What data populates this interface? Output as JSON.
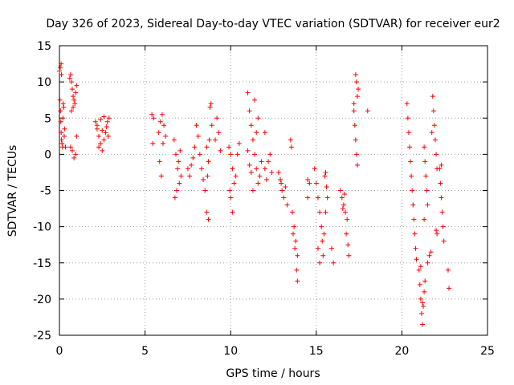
{
  "chart_data": {
    "type": "scatter",
    "title": "Day 326 of 2023, Sidereal Day-to-day VTEC variation (SDTVAR) for receiver eur2",
    "xlabel": "GPS time / hours",
    "ylabel": "SDTVAR / TECUs",
    "xlim": [
      0,
      25
    ],
    "ylim": [
      -25,
      15
    ],
    "xticks": [
      0,
      5,
      10,
      15,
      20,
      25
    ],
    "yticks": [
      -25,
      -20,
      -15,
      -10,
      -5,
      0,
      5,
      10,
      15
    ],
    "grid": true,
    "marker": "plus",
    "color": "#ff0000",
    "series": [
      {
        "name": "SDTVAR",
        "points": [
          [
            0.0,
            11.5
          ],
          [
            0.05,
            12.0
          ],
          [
            0.1,
            12.5
          ],
          [
            0.12,
            11.0
          ],
          [
            0.03,
            7.5
          ],
          [
            0.06,
            6.0
          ],
          [
            0.08,
            4.5
          ],
          [
            0.1,
            3.0
          ],
          [
            0.12,
            2.0
          ],
          [
            0.15,
            1.5
          ],
          [
            0.18,
            1.0
          ],
          [
            0.2,
            5.0
          ],
          [
            0.22,
            7.0
          ],
          [
            0.25,
            6.5
          ],
          [
            0.3,
            3.5
          ],
          [
            0.35,
            1.0
          ],
          [
            0.28,
            2.5
          ],
          [
            0.6,
            10.5
          ],
          [
            0.65,
            11.0
          ],
          [
            0.7,
            10.0
          ],
          [
            0.75,
            9.0
          ],
          [
            0.8,
            8.0
          ],
          [
            0.85,
            7.5
          ],
          [
            0.9,
            7.0
          ],
          [
            0.95,
            8.5
          ],
          [
            1.0,
            9.5
          ],
          [
            0.7,
            6.0
          ],
          [
            0.8,
            6.5
          ],
          [
            0.65,
            1.0
          ],
          [
            0.75,
            0.5
          ],
          [
            0.85,
            -0.5
          ],
          [
            0.95,
            0.0
          ],
          [
            1.0,
            2.5
          ],
          [
            2.1,
            4.5
          ],
          [
            2.2,
            3.5
          ],
          [
            2.3,
            2.5
          ],
          [
            2.4,
            1.5
          ],
          [
            2.5,
            0.5
          ],
          [
            2.6,
            2.0
          ],
          [
            2.7,
            3.0
          ],
          [
            2.8,
            4.5
          ],
          [
            2.9,
            5.0
          ],
          [
            2.2,
            4.0
          ],
          [
            2.4,
            4.8
          ],
          [
            2.6,
            5.2
          ],
          [
            2.75,
            3.8
          ],
          [
            2.85,
            2.5
          ],
          [
            2.5,
            3.3
          ],
          [
            2.3,
            1.0
          ],
          [
            5.4,
            5.5
          ],
          [
            5.5,
            5.0
          ],
          [
            5.45,
            1.5
          ],
          [
            5.8,
            3.0
          ],
          [
            5.9,
            4.5
          ],
          [
            6.0,
            5.5
          ],
          [
            6.1,
            4.0
          ],
          [
            6.2,
            2.5
          ],
          [
            5.85,
            -1.0
          ],
          [
            5.95,
            -3.0
          ],
          [
            6.05,
            1.5
          ],
          [
            6.7,
            2.0
          ],
          [
            6.8,
            0.0
          ],
          [
            6.9,
            -2.0
          ],
          [
            7.0,
            -4.0
          ],
          [
            7.1,
            -3.0
          ],
          [
            6.75,
            -6.0
          ],
          [
            6.85,
            -5.0
          ],
          [
            6.95,
            -1.0
          ],
          [
            7.05,
            0.5
          ],
          [
            7.5,
            -2.0
          ],
          [
            7.6,
            -3.0
          ],
          [
            7.7,
            -1.5
          ],
          [
            7.8,
            -0.5
          ],
          [
            7.9,
            1.0
          ],
          [
            8.0,
            4.0
          ],
          [
            8.1,
            2.5
          ],
          [
            8.2,
            0.0
          ],
          [
            8.3,
            -2.0
          ],
          [
            8.4,
            -3.5
          ],
          [
            8.5,
            -5.0
          ],
          [
            8.6,
            -8.0
          ],
          [
            8.7,
            -9.0
          ],
          [
            8.65,
            -3.0
          ],
          [
            8.75,
            2.0
          ],
          [
            8.8,
            6.5
          ],
          [
            8.85,
            7.0
          ],
          [
            8.9,
            4.0
          ],
          [
            8.6,
            1.0
          ],
          [
            8.7,
            -1.0
          ],
          [
            9.2,
            5.0
          ],
          [
            9.3,
            3.0
          ],
          [
            9.4,
            0.5
          ],
          [
            9.1,
            2.0
          ],
          [
            9.9,
            1.0
          ],
          [
            10.0,
            0.0
          ],
          [
            10.1,
            -2.0
          ],
          [
            10.2,
            -4.0
          ],
          [
            10.0,
            -6.0
          ],
          [
            10.1,
            -8.0
          ],
          [
            9.95,
            -5.0
          ],
          [
            10.3,
            -3.0
          ],
          [
            10.4,
            0.0
          ],
          [
            10.5,
            1.5
          ],
          [
            11.0,
            8.5
          ],
          [
            11.1,
            6.0
          ],
          [
            11.2,
            4.0
          ],
          [
            11.3,
            2.0
          ],
          [
            11.4,
            0.0
          ],
          [
            11.5,
            -2.0
          ],
          [
            11.6,
            -4.0
          ],
          [
            11.7,
            -3.0
          ],
          [
            11.8,
            -1.0
          ],
          [
            11.2,
            -2.5
          ],
          [
            11.3,
            -5.0
          ],
          [
            11.5,
            3.0
          ],
          [
            11.6,
            5.0
          ],
          [
            11.4,
            7.5
          ],
          [
            11.0,
            0.5
          ],
          [
            11.1,
            -1.5
          ],
          [
            12.0,
            -2.0
          ],
          [
            12.1,
            -3.5
          ],
          [
            12.2,
            -1.0
          ],
          [
            12.3,
            0.0
          ],
          [
            12.4,
            -2.5
          ],
          [
            12.0,
            3.0
          ],
          [
            12.8,
            -2.5
          ],
          [
            12.9,
            -3.5
          ],
          [
            13.0,
            -5.0
          ],
          [
            13.1,
            -6.0
          ],
          [
            13.2,
            -4.5
          ],
          [
            13.3,
            -7.0
          ],
          [
            12.95,
            -4.0
          ],
          [
            13.5,
            2.0
          ],
          [
            13.55,
            1.0
          ],
          [
            13.6,
            -8.0
          ],
          [
            13.7,
            -10.0
          ],
          [
            13.8,
            -12.0
          ],
          [
            13.9,
            -14.0
          ],
          [
            13.75,
            -13.0
          ],
          [
            13.85,
            -16.0
          ],
          [
            13.9,
            -17.5
          ],
          [
            13.65,
            -11.0
          ],
          [
            14.5,
            -3.5
          ],
          [
            14.6,
            -4.0
          ],
          [
            14.5,
            -6.0
          ],
          [
            14.9,
            -2.0
          ],
          [
            15.0,
            -4.0
          ],
          [
            15.1,
            -6.0
          ],
          [
            15.2,
            -8.0
          ],
          [
            15.3,
            -10.0
          ],
          [
            15.35,
            -12.0
          ],
          [
            15.4,
            -14.0
          ],
          [
            15.2,
            -15.0
          ],
          [
            15.1,
            -13.0
          ],
          [
            15.45,
            -11.0
          ],
          [
            15.5,
            -3.0
          ],
          [
            15.6,
            -4.5
          ],
          [
            15.55,
            -2.5
          ],
          [
            15.65,
            -6.0
          ],
          [
            15.55,
            -8.0
          ],
          [
            15.9,
            -13.0
          ],
          [
            16.0,
            -15.0
          ],
          [
            16.4,
            -5.0
          ],
          [
            16.5,
            -6.0
          ],
          [
            16.6,
            -7.0
          ],
          [
            16.7,
            -8.0
          ],
          [
            16.8,
            -9.0
          ],
          [
            16.75,
            -11.0
          ],
          [
            16.85,
            -12.5
          ],
          [
            16.9,
            -14.0
          ],
          [
            16.65,
            -5.5
          ],
          [
            16.55,
            -7.5
          ],
          [
            17.3,
            11.0
          ],
          [
            17.35,
            10.0
          ],
          [
            17.4,
            8.0
          ],
          [
            17.2,
            6.0
          ],
          [
            17.25,
            4.0
          ],
          [
            17.3,
            2.0
          ],
          [
            17.35,
            0.0
          ],
          [
            17.4,
            -1.5
          ],
          [
            17.45,
            9.0
          ],
          [
            17.2,
            7.0
          ],
          [
            18.0,
            6.0
          ],
          [
            20.3,
            7.0
          ],
          [
            20.35,
            5.0
          ],
          [
            20.4,
            3.0
          ],
          [
            20.45,
            1.0
          ],
          [
            20.5,
            -1.0
          ],
          [
            20.55,
            -3.0
          ],
          [
            20.6,
            -5.0
          ],
          [
            20.65,
            -7.0
          ],
          [
            20.7,
            -9.0
          ],
          [
            20.75,
            -11.0
          ],
          [
            20.8,
            -13.0
          ],
          [
            20.85,
            -14.5
          ],
          [
            21.0,
            -16.0
          ],
          [
            21.05,
            -18.0
          ],
          [
            21.1,
            -20.0
          ],
          [
            21.15,
            -22.0
          ],
          [
            21.2,
            -23.5
          ],
          [
            21.25,
            -21.0
          ],
          [
            21.3,
            -19.0
          ],
          [
            21.35,
            -17.5
          ],
          [
            21.1,
            -15.5
          ],
          [
            21.2,
            -20.5
          ],
          [
            21.3,
            1.0
          ],
          [
            21.35,
            -1.0
          ],
          [
            21.4,
            -3.0
          ],
          [
            21.45,
            -5.0
          ],
          [
            21.5,
            -7.0
          ],
          [
            21.3,
            -9.0
          ],
          [
            21.5,
            -15.0
          ],
          [
            21.6,
            -14.0
          ],
          [
            21.7,
            -13.5
          ],
          [
            21.8,
            8.0
          ],
          [
            21.85,
            6.0
          ],
          [
            21.9,
            4.0
          ],
          [
            21.95,
            2.0
          ],
          [
            22.0,
            0.0
          ],
          [
            22.05,
            -2.0
          ],
          [
            21.75,
            3.0
          ],
          [
            22.0,
            -10.5
          ],
          [
            22.05,
            -11.0
          ],
          [
            22.2,
            -2.0
          ],
          [
            22.25,
            -4.0
          ],
          [
            22.3,
            -6.0
          ],
          [
            22.35,
            -8.0
          ],
          [
            22.4,
            -10.0
          ],
          [
            22.45,
            -12.0
          ],
          [
            22.3,
            -1.5
          ],
          [
            22.7,
            -16.0
          ],
          [
            22.75,
            -18.5
          ]
        ]
      }
    ]
  }
}
